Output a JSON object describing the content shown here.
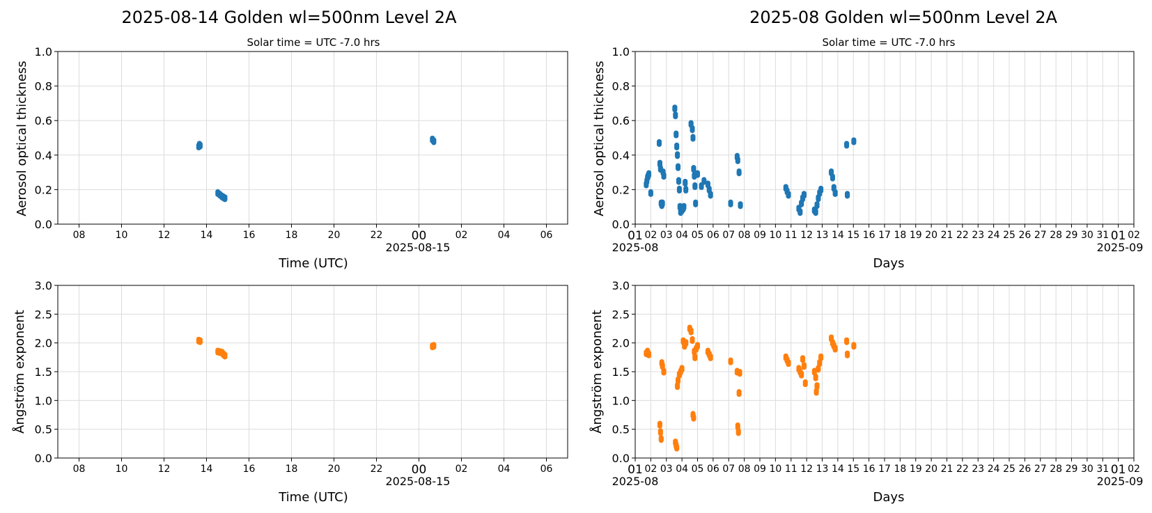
{
  "chart_data": [
    {
      "type": "scatter",
      "title": "2025-08-14  Golden  wl=500nm  Level 2A",
      "subtitle": "Solar time = UTC -7.0 hrs",
      "xlabel": "Time (UTC)",
      "ylabel": "Aerosol optical thickness",
      "xlim": [
        "2025-08-14 07:00",
        "2025-08-15 07:00"
      ],
      "ylim": [
        0,
        1
      ],
      "y_ticks": [
        "0.0",
        "0.2",
        "0.4",
        "0.6",
        "0.8",
        "1.0"
      ],
      "x_ticks": [
        "08",
        "10",
        "12",
        "14",
        "16",
        "18",
        "20",
        "22",
        "00",
        "02",
        "04",
        "06"
      ],
      "x_sublabel": "2025-08-15",
      "grid": true,
      "color": "#1f77b4",
      "series": [
        {
          "x": [
            "2025-08-14 13:38",
            "2025-08-14 13:40",
            "2025-08-14 13:42",
            "2025-08-14 14:32",
            "2025-08-14 14:38",
            "2025-08-14 14:44",
            "2025-08-14 14:48",
            "2025-08-14 14:52",
            "2025-08-15 00:38",
            "2025-08-15 00:42"
          ],
          "y": [
            0.45,
            0.46,
            0.455,
            0.18,
            0.17,
            0.16,
            0.155,
            0.15,
            0.49,
            0.48
          ]
        }
      ]
    },
    {
      "type": "scatter",
      "title": "2025-08  Golden  wl=500nm  Level 2A",
      "subtitle": "Solar time = UTC -7.0 hrs",
      "xlabel": "Days",
      "ylabel": "Aerosol optical thickness",
      "xlim": [
        "2025-08-01",
        "2025-09-02"
      ],
      "ylim": [
        0,
        1
      ],
      "y_ticks": [
        "0.0",
        "0.2",
        "0.4",
        "0.6",
        "0.8",
        "1.0"
      ],
      "x_ticks": [
        "01",
        "02",
        "03",
        "04",
        "05",
        "06",
        "07",
        "08",
        "09",
        "10",
        "11",
        "12",
        "13",
        "14",
        "15",
        "16",
        "17",
        "18",
        "19",
        "20",
        "21",
        "22",
        "23",
        "24",
        "25",
        "26",
        "27",
        "28",
        "29",
        "30",
        "31",
        "01",
        "02"
      ],
      "x_sublabel_left": "2025-08",
      "x_sublabel_right": "2025-09",
      "grid": true,
      "color": "#1f77b4",
      "series": [
        {
          "x": [
            "2025-08-01 17:00",
            "2025-08-01 18:00",
            "2025-08-01 19:00",
            "2025-08-01 20:00",
            "2025-08-01 21:00",
            "2025-08-02 00:00",
            "2025-08-02 13:00",
            "2025-08-02 14:00",
            "2025-08-02 15:00",
            "2025-08-02 16:00",
            "2025-08-02 17:00",
            "2025-08-02 18:00",
            "2025-08-02 19:00",
            "2025-08-02 20:00",
            "2025-08-03 13:00",
            "2025-08-03 14:00",
            "2025-08-03 15:00",
            "2025-08-03 16:00",
            "2025-08-03 17:00",
            "2025-08-03 18:00",
            "2025-08-03 19:00",
            "2025-08-03 20:00",
            "2025-08-03 21:00",
            "2025-08-03 22:00",
            "2025-08-04 00:00",
            "2025-08-04 02:00",
            "2025-08-04 03:00",
            "2025-08-04 05:00",
            "2025-08-04 06:00",
            "2025-08-04 14:00",
            "2025-08-04 16:00",
            "2025-08-04 17:00",
            "2025-08-04 18:00",
            "2025-08-04 19:00",
            "2025-08-04 20:00",
            "2025-08-04 21:00",
            "2025-08-05 00:00",
            "2025-08-05 06:00",
            "2025-08-05 10:00",
            "2025-08-05 16:00",
            "2025-08-05 18:00",
            "2025-08-05 20:00",
            "2025-08-07 03:00",
            "2025-08-07 13:00",
            "2025-08-07 14:00",
            "2025-08-07 16:00",
            "2025-08-07 18:00",
            "2025-08-10 16:00",
            "2025-08-10 18:00",
            "2025-08-10 20:00",
            "2025-08-11 12:00",
            "2025-08-11 14:00",
            "2025-08-11 16:00",
            "2025-08-11 18:00",
            "2025-08-11 20:00",
            "2025-08-12 12:00",
            "2025-08-12 14:00",
            "2025-08-12 16:00",
            "2025-08-12 18:00",
            "2025-08-12 20:00",
            "2025-08-12 22:00",
            "2025-08-13 14:00",
            "2025-08-13 16:00",
            "2025-08-13 18:00",
            "2025-08-13 20:00",
            "2025-08-14 13:38",
            "2025-08-14 14:40",
            "2025-08-15 00:40"
          ],
          "y": [
            0.23,
            0.25,
            0.27,
            0.28,
            0.29,
            0.18,
            0.47,
            0.35,
            0.32,
            0.12,
            0.11,
            0.12,
            0.3,
            0.28,
            0.67,
            0.63,
            0.52,
            0.45,
            0.4,
            0.33,
            0.25,
            0.2,
            0.1,
            0.07,
            0.08,
            0.09,
            0.1,
            0.24,
            0.2,
            0.58,
            0.55,
            0.5,
            0.32,
            0.28,
            0.22,
            0.12,
            0.29,
            0.22,
            0.25,
            0.23,
            0.2,
            0.17,
            0.12,
            0.39,
            0.37,
            0.3,
            0.11,
            0.21,
            0.19,
            0.17,
            0.09,
            0.07,
            0.12,
            0.15,
            0.17,
            0.08,
            0.07,
            0.11,
            0.15,
            0.18,
            0.2,
            0.3,
            0.27,
            0.21,
            0.18,
            0.46,
            0.17,
            0.48
          ]
        }
      ]
    },
    {
      "type": "scatter",
      "title": "",
      "xlabel": "Time (UTC)",
      "ylabel": "Ångström exponent",
      "xlim": [
        "2025-08-14 07:00",
        "2025-08-15 07:00"
      ],
      "ylim": [
        0,
        3
      ],
      "y_ticks": [
        "0.0",
        "0.5",
        "1.0",
        "1.5",
        "2.0",
        "2.5",
        "3.0"
      ],
      "x_ticks": [
        "08",
        "10",
        "12",
        "14",
        "16",
        "18",
        "20",
        "22",
        "00",
        "02",
        "04",
        "06"
      ],
      "x_sublabel": "2025-08-15",
      "grid": true,
      "color": "#ff7f0e",
      "series": [
        {
          "x": [
            "2025-08-14 13:38",
            "2025-08-14 13:42",
            "2025-08-14 14:32",
            "2025-08-14 14:38",
            "2025-08-14 14:44",
            "2025-08-14 14:48",
            "2025-08-14 14:52",
            "2025-08-15 00:38",
            "2025-08-15 00:42"
          ],
          "y": [
            2.04,
            2.03,
            1.85,
            1.84,
            1.83,
            1.8,
            1.78,
            1.94,
            1.95
          ]
        }
      ]
    },
    {
      "type": "scatter",
      "title": "",
      "xlabel": "Days",
      "ylabel": "Ångström exponent",
      "xlim": [
        "2025-08-01",
        "2025-09-02"
      ],
      "ylim": [
        0,
        3
      ],
      "y_ticks": [
        "0.0",
        "0.5",
        "1.0",
        "1.5",
        "2.0",
        "2.5",
        "3.0"
      ],
      "x_ticks": [
        "01",
        "02",
        "03",
        "04",
        "05",
        "06",
        "07",
        "08",
        "09",
        "10",
        "11",
        "12",
        "13",
        "14",
        "15",
        "16",
        "17",
        "18",
        "19",
        "20",
        "21",
        "22",
        "23",
        "24",
        "25",
        "26",
        "27",
        "28",
        "29",
        "30",
        "31",
        "01",
        "02"
      ],
      "x_sublabel_left": "2025-08",
      "x_sublabel_right": "2025-09",
      "grid": true,
      "color": "#ff7f0e",
      "series": [
        {
          "x": [
            "2025-08-01 17:00",
            "2025-08-01 19:00",
            "2025-08-01 21:00",
            "2025-08-02 14:00",
            "2025-08-02 15:00",
            "2025-08-02 16:00",
            "2025-08-02 17:00",
            "2025-08-02 18:00",
            "2025-08-02 20:00",
            "2025-08-03 14:00",
            "2025-08-03 15:00",
            "2025-08-03 16:00",
            "2025-08-03 17:00",
            "2025-08-03 18:00",
            "2025-08-03 20:00",
            "2025-08-03 22:00",
            "2025-08-04 00:00",
            "2025-08-04 02:00",
            "2025-08-04 04:00",
            "2025-08-04 06:00",
            "2025-08-04 12:00",
            "2025-08-04 14:00",
            "2025-08-04 16:00",
            "2025-08-04 17:00",
            "2025-08-04 18:00",
            "2025-08-04 19:00",
            "2025-08-04 20:00",
            "2025-08-04 22:00",
            "2025-08-05 00:00",
            "2025-08-05 16:00",
            "2025-08-05 18:00",
            "2025-08-05 20:00",
            "2025-08-07 03:00",
            "2025-08-07 13:00",
            "2025-08-07 14:00",
            "2025-08-07 15:00",
            "2025-08-07 16:00",
            "2025-08-07 17:00",
            "2025-08-10 16:00",
            "2025-08-10 18:00",
            "2025-08-10 20:00",
            "2025-08-11 12:00",
            "2025-08-11 14:00",
            "2025-08-11 16:00",
            "2025-08-11 18:00",
            "2025-08-11 20:00",
            "2025-08-11 22:00",
            "2025-08-12 12:00",
            "2025-08-12 14:00",
            "2025-08-12 15:00",
            "2025-08-12 16:00",
            "2025-08-12 18:00",
            "2025-08-12 20:00",
            "2025-08-12 22:00",
            "2025-08-13 14:00",
            "2025-08-13 16:00",
            "2025-08-13 18:00",
            "2025-08-13 20:00",
            "2025-08-14 13:40",
            "2025-08-14 14:40",
            "2025-08-15 00:40"
          ],
          "y": [
            1.82,
            1.85,
            1.8,
            0.58,
            0.45,
            0.33,
            1.65,
            1.6,
            1.5,
            0.27,
            0.22,
            0.18,
            1.25,
            1.35,
            1.45,
            1.5,
            1.55,
            2.03,
            1.95,
            2.0,
            2.25,
            2.2,
            2.05,
            0.75,
            0.7,
            1.85,
            1.75,
            1.9,
            1.95,
            1.85,
            1.8,
            1.75,
            1.68,
            1.5,
            0.55,
            0.45,
            1.13,
            1.48,
            1.75,
            1.7,
            1.65,
            1.55,
            1.5,
            1.45,
            1.72,
            1.6,
            1.3,
            1.5,
            1.4,
            1.15,
            1.25,
            1.55,
            1.65,
            1.75,
            2.08,
            2.0,
            1.95,
            1.9,
            2.03,
            1.8,
            1.95
          ]
        }
      ]
    }
  ]
}
